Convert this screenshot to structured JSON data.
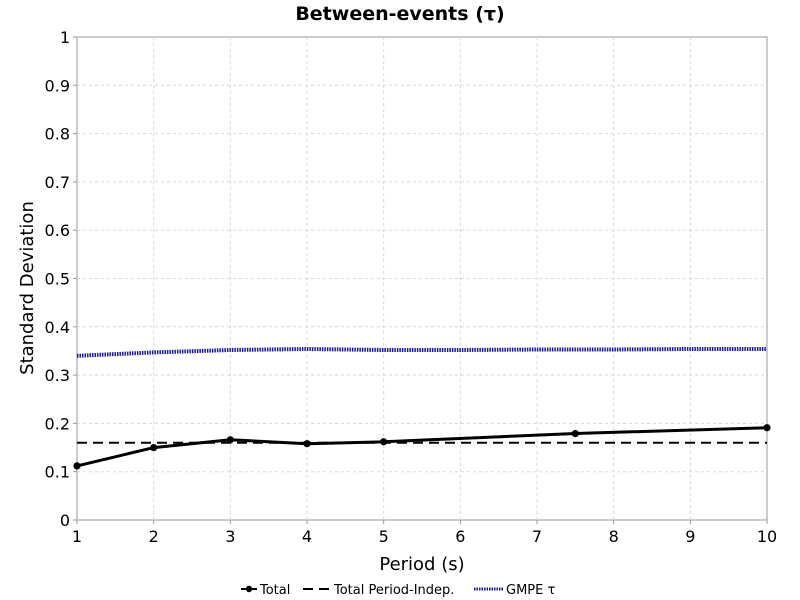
{
  "chart_data": {
    "type": "line",
    "title": "Between-events (τ)",
    "xlabel": "Period (s)",
    "ylabel": "Standard Deviation",
    "xlim": [
      1,
      10
    ],
    "ylim": [
      0,
      1
    ],
    "x_ticks": [
      1,
      2,
      3,
      4,
      5,
      6,
      7,
      8,
      9,
      10
    ],
    "y_ticks": [
      0,
      0.1,
      0.2,
      0.3,
      0.4,
      0.5,
      0.6,
      0.7,
      0.8,
      0.9,
      1
    ],
    "y_tick_labels": [
      "0",
      "0.1",
      "0.2",
      "0.3",
      "0.4",
      "0.5",
      "0.6",
      "0.7",
      "0.8",
      "0.9",
      "1"
    ],
    "grid": true,
    "legend_position": "bottom",
    "series": [
      {
        "name": "Total",
        "style": "solid-markers",
        "color": "#000000",
        "x": [
          1,
          2,
          3,
          4,
          5,
          7.5,
          10
        ],
        "y": [
          0.112,
          0.15,
          0.166,
          0.158,
          0.162,
          0.179,
          0.191
        ]
      },
      {
        "name": "Total Period-Indep.",
        "style": "dashed",
        "color": "#000000",
        "x": [
          1,
          10
        ],
        "y": [
          0.16,
          0.16
        ]
      },
      {
        "name": "GMPE τ",
        "style": "dotted-thick",
        "color": "#1a1a9e",
        "x": [
          1,
          2,
          3,
          4,
          5,
          6,
          7,
          8,
          9,
          10
        ],
        "y": [
          0.34,
          0.347,
          0.352,
          0.354,
          0.352,
          0.352,
          0.353,
          0.353,
          0.354,
          0.354
        ]
      }
    ]
  }
}
